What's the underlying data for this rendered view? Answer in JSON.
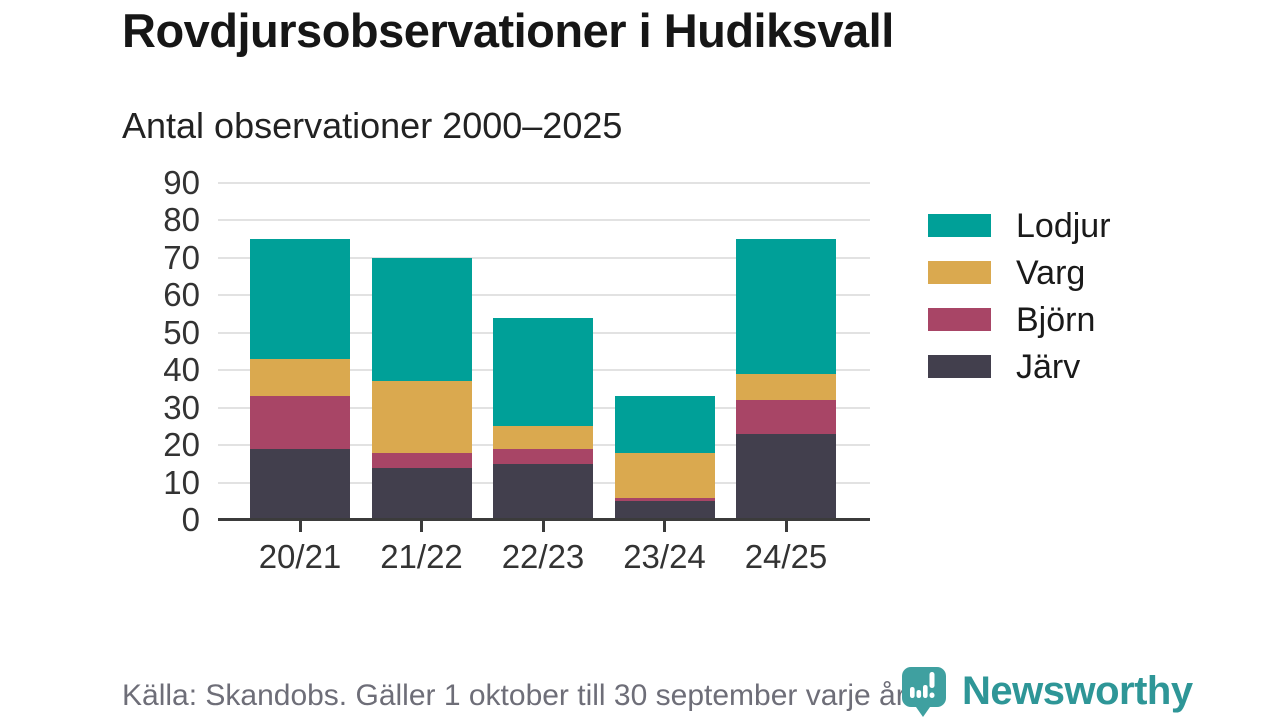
{
  "header": {
    "title": "Rovdjursobservationer i Hudiksvall",
    "subtitle": "Antal observationer 2000–2025"
  },
  "chart_data": {
    "type": "bar",
    "stacked": true,
    "title": "Rovdjursobservationer i Hudiksvall",
    "subtitle": "Antal observationer 2000–2025",
    "categories": [
      "20/21",
      "21/22",
      "22/23",
      "23/24",
      "24/25"
    ],
    "series": [
      {
        "name": "Lodjur",
        "color": "#00a098",
        "values": [
          32,
          33,
          29,
          15,
          36
        ]
      },
      {
        "name": "Varg",
        "color": "#daa94f",
        "values": [
          10,
          19,
          6,
          12,
          7
        ]
      },
      {
        "name": "Björn",
        "color": "#a84566",
        "values": [
          14,
          4,
          4,
          1,
          9
        ]
      },
      {
        "name": "Järv",
        "color": "#423f4d",
        "values": [
          19,
          14,
          15,
          5,
          23
        ]
      }
    ],
    "stack_order_bottom_to_top": [
      "Järv",
      "Björn",
      "Varg",
      "Lodjur"
    ],
    "totals": [
      75,
      70,
      54,
      33,
      75
    ],
    "ylim": [
      0,
      90
    ],
    "yticks": [
      0,
      10,
      20,
      30,
      40,
      50,
      60,
      70,
      80,
      90
    ],
    "grid": "horizontal",
    "legend_position": "right",
    "xlabel": "",
    "ylabel": ""
  },
  "footer": {
    "source": "Källa: Skandobs. Gäller 1 oktober till 30 september varje år.",
    "brand": "Newsworthy",
    "logo_icon": "bar-chart-speech-bubble-icon"
  },
  "colors": {
    "accent_teal": "#00a098",
    "gold": "#daa94f",
    "maroon": "#a84566",
    "dark_slate": "#423f4d",
    "gridline": "#e2e2e2",
    "axis": "#3b3b3b",
    "logo_teal": "#3fa0a0",
    "wordmark_teal": "#2e9697",
    "source_gray": "#6e6e78"
  }
}
